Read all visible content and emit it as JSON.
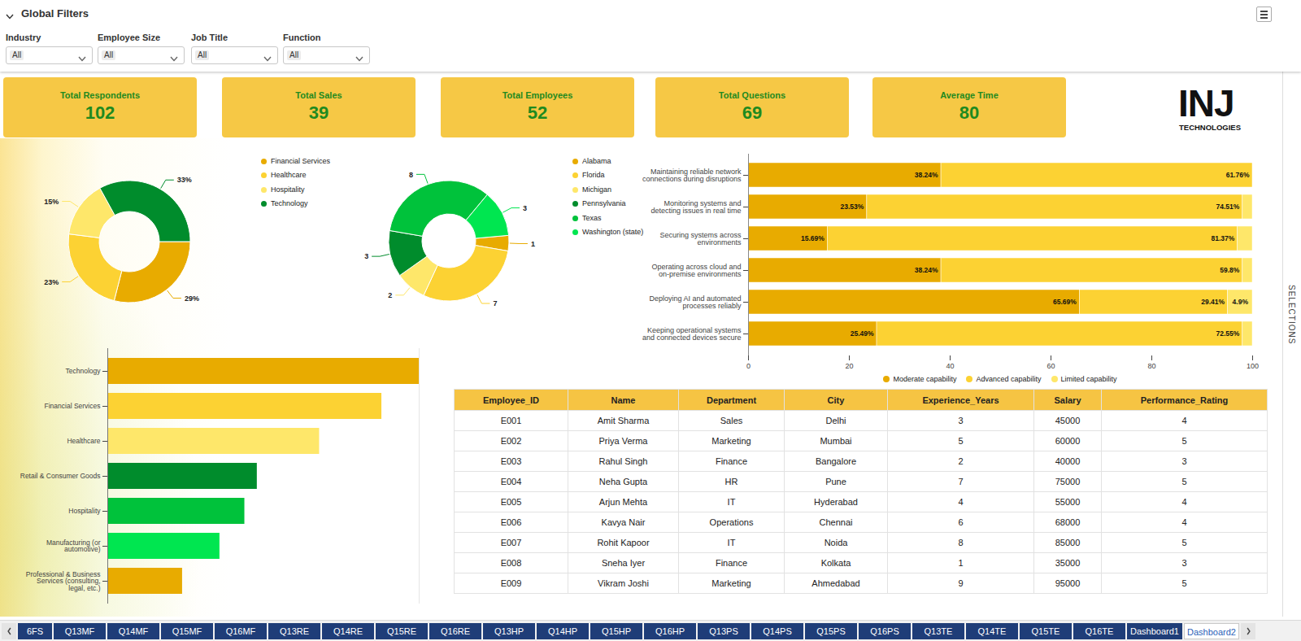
{
  "filters": {
    "title": "Global Filters",
    "items": [
      {
        "label": "Industry",
        "value": "All"
      },
      {
        "label": "Employee Size",
        "value": "All"
      },
      {
        "label": "Job Title",
        "value": "All"
      },
      {
        "label": "Function",
        "value": "All"
      }
    ]
  },
  "kpis": [
    {
      "label": "Total Respondents",
      "value": 102
    },
    {
      "label": "Total Sales",
      "value": 39
    },
    {
      "label": "Total Employees",
      "value": 52
    },
    {
      "label": "Total Questions",
      "value": 69
    },
    {
      "label": "Average Time",
      "value": 80
    }
  ],
  "logo": {
    "name": "INJ",
    "subtitle": "TECHNOLOGIES"
  },
  "chart_data": [
    {
      "type": "donut",
      "categories": [
        "Financial Services",
        "Healthcare",
        "Hospitality",
        "Technology"
      ],
      "values": [
        29,
        23,
        15,
        33
      ],
      "value_labels": [
        "29%",
        "23%",
        "15%",
        "33%"
      ],
      "colors": [
        "#e8ab00",
        "#fcd233",
        "#fee76a",
        "#008c2c"
      ],
      "data_labels": true,
      "legend": "right"
    },
    {
      "type": "donut",
      "categories": [
        "Alabama",
        "Florida",
        "Michigan",
        "Pennsylvania",
        "Texas",
        "Washington (state)"
      ],
      "values": [
        1,
        7,
        2,
        3,
        8,
        3
      ],
      "colors": [
        "#e8ab00",
        "#fcd233",
        "#fee76a",
        "#008c2c",
        "#00c23b",
        "#00e650"
      ],
      "data_labels": true,
      "legend": "right"
    },
    {
      "type": "bar",
      "orientation": "horizontal",
      "stacked": true,
      "categories": [
        "Maintaining reliable network connections during disruptions",
        "Monitoring systems and detecting issues in real time",
        "Securing systems across environments",
        "Operating across cloud and on-premise environments",
        "Deploying AI and automated processes reliably",
        "Keeping operational systems and connected devices secure"
      ],
      "series": [
        {
          "name": "Moderate capability",
          "color": "#e8ab00",
          "values": [
            38.24,
            23.53,
            15.69,
            38.24,
            65.69,
            25.49
          ],
          "value_labels": [
            "38.24%",
            "23.53%",
            "15.69%",
            "38.24%",
            "65.69%",
            "25.49%"
          ]
        },
        {
          "name": "Advanced capability",
          "color": "#fcd233",
          "values": [
            61.76,
            74.51,
            81.37,
            59.8,
            29.41,
            72.55
          ],
          "value_labels": [
            "61.76%",
            "74.51%",
            "81.37%",
            "59.8%",
            "29.41%",
            "72.55%"
          ]
        },
        {
          "name": "Limited capability",
          "color": "#fee76a",
          "values": [
            0,
            1.96,
            2.94,
            1.96,
            4.9,
            1.96
          ],
          "value_labels": [
            null,
            null,
            null,
            null,
            "4.9%",
            null
          ]
        }
      ],
      "xlim": [
        0,
        100
      ],
      "xticks": [
        0,
        20,
        40,
        60,
        80,
        100
      ],
      "data_labels": true,
      "legend": "bottom"
    },
    {
      "type": "bar",
      "orientation": "horizontal",
      "categories": [
        "Technology",
        "Financial Services",
        "Healthcare",
        "Retail & Consumer Goods",
        "Hospitality",
        "Manufacturing (or automotive)",
        "Professional & Business Services (consulting, legal, etc.)"
      ],
      "values": [
        25,
        22,
        17,
        12,
        11,
        9,
        6
      ],
      "colors": [
        "#e8ab00",
        "#fcd233",
        "#fee76a",
        "#008c2c",
        "#00c23b",
        "#00e650",
        "#e8ab00"
      ],
      "xlim": [
        0,
        25
      ],
      "tick_labels": "y"
    }
  ],
  "table": {
    "columns": [
      "Employee_ID",
      "Name",
      "Department",
      "City",
      "Experience_Years",
      "Salary",
      "Performance_Rating"
    ],
    "rows": [
      [
        "E001",
        "Amit Sharma",
        "Sales",
        "Delhi",
        3,
        45000,
        4
      ],
      [
        "E002",
        "Priya Verma",
        "Marketing",
        "Mumbai",
        5,
        60000,
        5
      ],
      [
        "E003",
        "Rahul Singh",
        "Finance",
        "Bangalore",
        2,
        40000,
        3
      ],
      [
        "E004",
        "Neha Gupta",
        "HR",
        "Pune",
        7,
        75000,
        5
      ],
      [
        "E005",
        "Arjun Mehta",
        "IT",
        "Hyderabad",
        4,
        55000,
        4
      ],
      [
        "E006",
        "Kavya Nair",
        "Operations",
        "Chennai",
        6,
        68000,
        4
      ],
      [
        "E007",
        "Rohit Kapoor",
        "IT",
        "Noida",
        8,
        85000,
        5
      ],
      [
        "E008",
        "Sneha Iyer",
        "Finance",
        "Kolkata",
        1,
        35000,
        3
      ],
      [
        "E009",
        "Vikram Joshi",
        "Marketing",
        "Ahmedabad",
        9,
        95000,
        5
      ]
    ]
  },
  "tabs": {
    "items": [
      "6FS",
      "Q13MF",
      "Q14MF",
      "Q15MF",
      "Q16MF",
      "Q13RE",
      "Q14RE",
      "Q15RE",
      "Q16RE",
      "Q13HP",
      "Q14HP",
      "Q15HP",
      "Q16HP",
      "Q13PS",
      "Q14PS",
      "Q15PS",
      "Q16PS",
      "Q13TE",
      "Q14TE",
      "Q15TE",
      "Q16TE",
      "Dashboard1",
      "Dashboard2"
    ],
    "active": "Dashboard2"
  },
  "sidebar": {
    "label": "SELECTIONS"
  }
}
